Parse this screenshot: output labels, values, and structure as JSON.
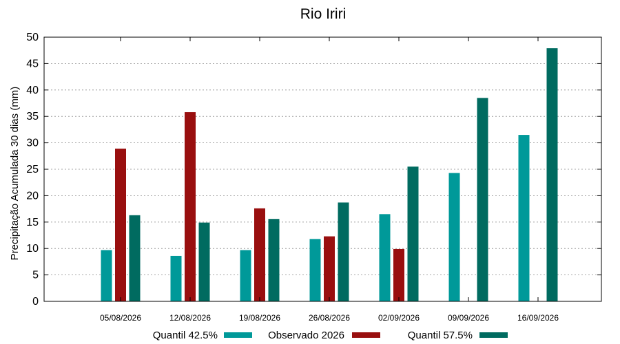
{
  "chart_data": {
    "type": "bar",
    "title": "Rio Iriri",
    "xlabel": "",
    "ylabel": "Precipitação Acumulada 30 dias (mm)",
    "ylim": [
      0,
      50
    ],
    "yticks": [
      0,
      5,
      10,
      15,
      20,
      25,
      30,
      35,
      40,
      45,
      50
    ],
    "grid": true,
    "legend_position": "bottom",
    "categories": [
      "05/08/2026",
      "12/08/2026",
      "19/08/2026",
      "26/08/2026",
      "02/09/2026",
      "09/09/2026",
      "16/09/2026"
    ],
    "series": [
      {
        "name": "Quantil 42.5%",
        "color": "#009999",
        "values": [
          9.7,
          8.6,
          9.7,
          11.8,
          16.5,
          24.3,
          31.5
        ]
      },
      {
        "name": "Observado 2026",
        "color": "#990f0f",
        "values": [
          28.9,
          35.8,
          17.6,
          12.3,
          9.9,
          null,
          null
        ]
      },
      {
        "name": "Quantil 57.5%",
        "color": "#006b60",
        "values": [
          16.3,
          14.9,
          15.6,
          18.7,
          25.5,
          38.5,
          47.9
        ]
      }
    ]
  }
}
